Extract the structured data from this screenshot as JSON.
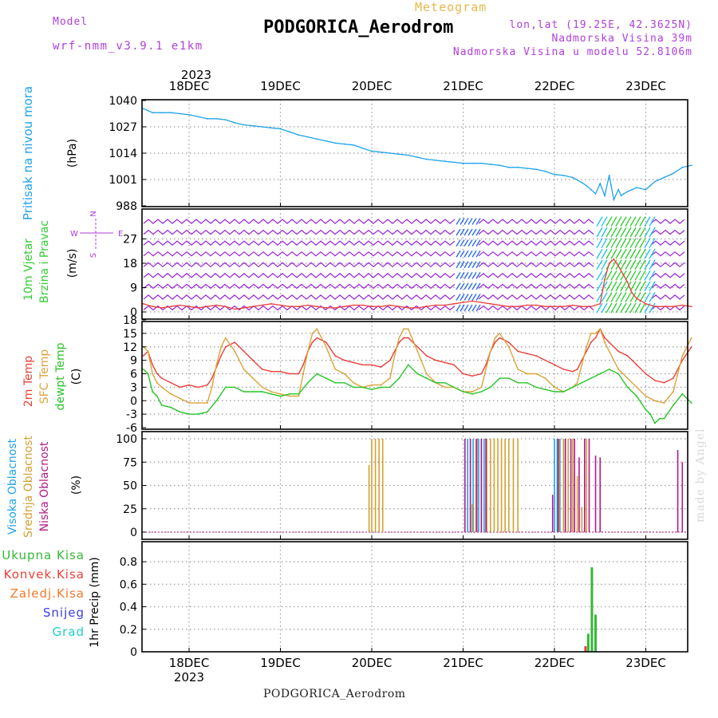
{
  "header": {
    "model_label": "Model",
    "model_name": "wrf-nmm_v3.9.1 e1km",
    "product": "Meteogram",
    "station": "PODGORICA_Aerodrom",
    "lonlat": "lon,lat (19.25E, 42.3625N)",
    "altitude": "Nadmorska Visina 39m",
    "model_altitude": "Nadmorska Visina u modelu 52.8106m",
    "year_top": "2023",
    "year_bottom": "2023",
    "footer": "PODGORICA_Aerodrom",
    "credit": "made by Angel"
  },
  "colors": {
    "pressure": "#1fa3e8",
    "wind_purple": "#9a22d6",
    "wind_blue": "#2a6be6",
    "wind_cyan": "#27c2e8",
    "wind_green": "#33cc33",
    "temp_2m": "#e8413a",
    "temp_sfc": "#dca33a",
    "dewpoint": "#27c427",
    "cloud_high": "#1fa3e8",
    "cloud_mid": "#d4a032",
    "cloud_low": "#b01a8a",
    "precip_total": "#33b833",
    "precip_conv": "#e8413a",
    "precip_frozen": "#f07a2a",
    "precip_snow": "#3c3ce0",
    "precip_hail": "#22cccc",
    "label_purple": "#b040d8"
  },
  "chart_data": [
    {
      "panel": "pressure",
      "type": "line",
      "ylabel": "Pritisak na nivou mora",
      "unit": "(hPa)",
      "yticks": [
        1040,
        1027,
        1014,
        1001,
        988
      ],
      "ylim": [
        988,
        1040
      ],
      "xticks": [
        "18DEC",
        "19DEC",
        "20DEC",
        "21DEC",
        "22DEC",
        "23DEC"
      ],
      "xlim_days": [
        -0.5,
        5.5
      ],
      "series": [
        {
          "x": [
            -0.5,
            -0.45,
            -0.4,
            -0.3,
            -0.2,
            -0.1,
            0,
            0.1,
            0.2,
            0.3,
            0.4,
            0.5,
            0.6,
            0.7,
            0.8,
            0.9,
            1.0,
            1.1,
            1.2,
            1.3,
            1.4,
            1.5,
            1.6,
            1.7,
            1.8,
            1.9,
            2.0,
            2.1,
            2.2,
            2.3,
            2.4,
            2.5,
            2.6,
            2.7,
            2.8,
            2.9,
            3.0,
            3.1,
            3.2,
            3.3,
            3.4,
            3.5,
            3.6,
            3.7,
            3.8,
            3.9,
            4.0,
            4.1,
            4.2,
            4.3,
            4.35,
            4.4,
            4.45,
            4.5,
            4.55,
            4.6,
            4.62,
            4.65,
            4.7,
            4.73,
            4.76,
            4.8,
            4.85,
            4.9,
            5.0,
            5.05,
            5.1,
            5.2,
            5.3,
            5.4,
            5.5
          ],
          "values": [
            1036,
            1035,
            1034,
            1034,
            1034,
            1033.5,
            1033,
            1032,
            1031,
            1031,
            1030.5,
            1029,
            1028,
            1027.5,
            1027,
            1026.5,
            1026,
            1024.5,
            1023,
            1022,
            1021,
            1020,
            1019,
            1018.5,
            1018,
            1016.5,
            1015,
            1014.5,
            1014,
            1013.5,
            1013,
            1012,
            1011,
            1010.5,
            1010,
            1009.5,
            1009,
            1009,
            1009,
            1008.5,
            1008,
            1007,
            1007,
            1006.5,
            1006,
            1005,
            1003.5,
            1003,
            1002,
            999.5,
            998,
            996,
            994,
            999,
            993,
            1003,
            998,
            991,
            996,
            993,
            994,
            995,
            996,
            997,
            996,
            998,
            1000,
            1002,
            1004,
            1007,
            1008
          ]
        }
      ]
    },
    {
      "panel": "wind",
      "type": "line",
      "ylabel": "10m Vjetar Brzina i Pravac",
      "unit": "(m/s)",
      "compass": {
        "north": "N",
        "east": "E",
        "west": "W",
        "south": "S"
      },
      "yticks": [
        0,
        9,
        18,
        27
      ],
      "ylim": [
        0,
        36
      ],
      "series": [
        {
          "name": "speed",
          "x": [
            -0.5,
            -0.4,
            -0.3,
            -0.2,
            -0.1,
            0,
            0.1,
            0.2,
            0.3,
            0.4,
            0.5,
            0.6,
            0.7,
            0.8,
            0.9,
            1.0,
            1.1,
            1.2,
            1.3,
            1.4,
            1.5,
            1.6,
            1.7,
            1.8,
            1.9,
            2.0,
            2.1,
            2.2,
            2.3,
            2.4,
            2.5,
            2.6,
            2.7,
            2.8,
            2.9,
            3.0,
            3.1,
            3.2,
            3.3,
            3.4,
            3.5,
            3.6,
            3.7,
            3.8,
            3.9,
            4.0,
            4.1,
            4.2,
            4.3,
            4.4,
            4.5,
            4.55,
            4.6,
            4.65,
            4.7,
            4.75,
            4.8,
            4.85,
            4.9,
            5.0,
            5.1,
            5.2,
            5.3,
            5.4,
            5.5
          ],
          "values": [
            3,
            2,
            1.5,
            2,
            2.5,
            2,
            1.5,
            2,
            2.5,
            2,
            1,
            1.5,
            2,
            2.5,
            3,
            2.5,
            2,
            2,
            2.5,
            2,
            1.5,
            1.5,
            2,
            2.5,
            2.5,
            2,
            2,
            2.5,
            2,
            1.5,
            1.5,
            2,
            2.5,
            2.5,
            3,
            3.5,
            4,
            3.5,
            3,
            2.5,
            2,
            2,
            2.5,
            2.5,
            2,
            2,
            2,
            2.5,
            2,
            2,
            3,
            12,
            18,
            19.5,
            17,
            14,
            11,
            7,
            5,
            3,
            2,
            2,
            2,
            2.5,
            2
          ]
        }
      ]
    },
    {
      "panel": "temperature",
      "type": "line",
      "ylabel": [
        "2m Temp",
        "SFC Temp",
        "dewpt Temp"
      ],
      "unit": "(C)",
      "yticks": [
        -6,
        -3,
        0,
        3,
        6,
        9,
        12,
        15,
        18
      ],
      "ylim": [
        -6,
        18
      ],
      "series": [
        {
          "name": "2m Temp",
          "x": [
            -0.5,
            -0.45,
            -0.4,
            -0.35,
            -0.3,
            -0.2,
            -0.1,
            0,
            0.1,
            0.2,
            0.25,
            0.3,
            0.35,
            0.4,
            0.5,
            0.6,
            0.7,
            0.8,
            0.9,
            1.0,
            1.1,
            1.2,
            1.25,
            1.3,
            1.35,
            1.4,
            1.5,
            1.6,
            1.7,
            1.8,
            1.9,
            2.0,
            2.1,
            2.2,
            2.25,
            2.3,
            2.35,
            2.4,
            2.5,
            2.6,
            2.7,
            2.8,
            2.9,
            3.0,
            3.1,
            3.2,
            3.25,
            3.3,
            3.35,
            3.4,
            3.5,
            3.6,
            3.7,
            3.8,
            3.9,
            4.0,
            4.1,
            4.2,
            4.25,
            4.3,
            4.35,
            4.4,
            4.45,
            4.5,
            4.55,
            4.6,
            4.7,
            4.8,
            4.9,
            5.0,
            5.1,
            5.2,
            5.3,
            5.4,
            5.5
          ],
          "values": [
            10,
            11,
            8,
            6,
            5,
            4,
            3,
            3.5,
            3,
            3.5,
            5,
            7.5,
            10,
            12,
            13,
            11,
            9,
            7,
            6.5,
            6.5,
            6,
            6,
            8,
            11,
            13,
            14,
            13,
            10,
            9,
            8.5,
            8,
            8,
            7.5,
            9,
            11,
            13,
            14,
            14,
            12,
            10,
            9,
            8.5,
            8,
            6,
            5.5,
            6,
            8,
            11,
            13,
            14,
            13,
            11,
            10.5,
            10,
            9,
            8,
            7,
            6.5,
            7,
            9,
            11,
            13,
            14,
            16,
            14,
            13,
            11,
            10,
            8,
            6,
            4.5,
            4,
            5,
            9,
            12
          ]
        },
        {
          "name": "SFC Temp",
          "x": [
            -0.5,
            -0.45,
            -0.4,
            -0.35,
            -0.3,
            -0.2,
            -0.1,
            0,
            0.1,
            0.2,
            0.25,
            0.3,
            0.35,
            0.4,
            0.5,
            0.6,
            0.7,
            0.8,
            0.9,
            1.0,
            1.1,
            1.2,
            1.25,
            1.3,
            1.35,
            1.4,
            1.5,
            1.6,
            1.7,
            1.8,
            1.9,
            2.0,
            2.1,
            2.2,
            2.25,
            2.3,
            2.35,
            2.4,
            2.5,
            2.6,
            2.7,
            2.8,
            2.9,
            3.0,
            3.1,
            3.2,
            3.25,
            3.3,
            3.35,
            3.4,
            3.5,
            3.6,
            3.7,
            3.8,
            3.9,
            4.0,
            4.1,
            4.2,
            4.25,
            4.3,
            4.35,
            4.4,
            4.45,
            4.5,
            4.55,
            4.6,
            4.7,
            4.8,
            4.9,
            5.0,
            5.1,
            5.2,
            5.3,
            5.4,
            5.5
          ],
          "values": [
            12,
            11,
            6,
            4,
            3,
            1.5,
            0.5,
            -0.5,
            -0.5,
            -0.5,
            3,
            8,
            12,
            14,
            11,
            7,
            5,
            3,
            2,
            1.5,
            1,
            1,
            6,
            11,
            15,
            16,
            12,
            7,
            6,
            4,
            3,
            3.5,
            3.5,
            5,
            10,
            14,
            16,
            16,
            11,
            6,
            4,
            3,
            3,
            2,
            2,
            3,
            7,
            11,
            14,
            15,
            12,
            7,
            6,
            6,
            5,
            3,
            2,
            3,
            4,
            8,
            12,
            15,
            15,
            16,
            13,
            11,
            7,
            5,
            3,
            1,
            0,
            -0.5,
            2,
            10,
            14
          ]
        },
        {
          "name": "dewpt Temp",
          "x": [
            -0.5,
            -0.45,
            -0.4,
            -0.35,
            -0.3,
            -0.2,
            -0.1,
            0,
            0.1,
            0.2,
            0.3,
            0.4,
            0.5,
            0.6,
            0.7,
            0.8,
            0.9,
            1.0,
            1.1,
            1.2,
            1.3,
            1.4,
            1.5,
            1.6,
            1.7,
            1.8,
            1.9,
            2.0,
            2.1,
            2.2,
            2.3,
            2.4,
            2.5,
            2.6,
            2.7,
            2.8,
            2.9,
            3.0,
            3.1,
            3.2,
            3.3,
            3.4,
            3.5,
            3.6,
            3.7,
            3.8,
            3.9,
            4.0,
            4.1,
            4.2,
            4.3,
            4.4,
            4.5,
            4.6,
            4.7,
            4.8,
            4.9,
            5.0,
            5.05,
            5.1,
            5.15,
            5.2,
            5.3,
            5.4,
            5.5
          ],
          "values": [
            7,
            6,
            2,
            1,
            -1,
            -1.5,
            -2.5,
            -3,
            -3,
            -2.5,
            0,
            3,
            3,
            2,
            2,
            2,
            1.5,
            1,
            1.5,
            1.5,
            4,
            6,
            5,
            4,
            4,
            3,
            3,
            2.5,
            3,
            3,
            5,
            8,
            6,
            5,
            4,
            4,
            3,
            2,
            1.5,
            2,
            3,
            5,
            5,
            4,
            4,
            3,
            2.5,
            2,
            2,
            3,
            4,
            5,
            6,
            7,
            6,
            3,
            1,
            -2,
            -3,
            -5,
            -4,
            -4,
            -1,
            1.5,
            -0.5
          ]
        }
      ]
    },
    {
      "panel": "clouds",
      "type": "bar",
      "ylabel": [
        "Visoka Oblacnost",
        "Srednja Oblacnost",
        "Niska Oblacnost"
      ],
      "unit": "(%)",
      "yticks": [
        0,
        25,
        50,
        75,
        100
      ],
      "ylim": [
        0,
        100
      ],
      "series": [
        {
          "name": "Visoka Oblacnost",
          "x": [
            3.05,
            3.08,
            3.11,
            3.14,
            3.17,
            3.2,
            3.23,
            4.0,
            4.03,
            4.06,
            4.1
          ],
          "values": [
            100,
            100,
            100,
            100,
            100,
            100,
            100,
            100,
            100,
            100,
            100
          ]
        },
        {
          "name": "Srednja Oblacnost",
          "x": [
            1.97,
            2.0,
            2.04,
            2.08,
            2.12,
            3.1,
            3.14,
            3.2,
            3.26,
            3.3,
            3.34,
            3.38,
            3.42,
            3.46,
            3.5,
            3.55,
            3.6,
            4.05,
            4.1,
            4.15,
            4.2,
            4.25,
            4.3,
            4.35
          ],
          "values": [
            72,
            100,
            100,
            100,
            100,
            30,
            100,
            100,
            100,
            100,
            100,
            100,
            100,
            100,
            100,
            100,
            100,
            100,
            100,
            100,
            100,
            60,
            27,
            100
          ]
        },
        {
          "name": "Niska Oblacnost",
          "x": [
            3.02,
            3.08,
            3.15,
            3.2,
            3.25,
            3.98,
            4.04,
            4.12,
            4.18,
            4.22,
            4.27,
            4.33,
            4.38,
            4.45,
            4.5,
            5.35,
            5.4
          ],
          "values": [
            100,
            100,
            100,
            100,
            100,
            40,
            100,
            100,
            100,
            100,
            80,
            100,
            100,
            82,
            80,
            88,
            75
          ]
        }
      ]
    },
    {
      "panel": "precip",
      "type": "bar",
      "ylabel": "1hr Precip (mm)",
      "legend": [
        "Ukupna Kisa",
        "Konvek.Kisa",
        "Zaledj.Kisa",
        "Snijeg",
        "Grad"
      ],
      "yticks": [
        0,
        0.2,
        0.4,
        0.6,
        0.8
      ],
      "ylim": [
        0,
        0.9
      ],
      "series": [
        {
          "name": "Ukupna Kisa",
          "x": [
            4.37,
            4.41,
            4.45
          ],
          "values": [
            0.16,
            0.75,
            0.33
          ]
        },
        {
          "name": "Konvek.Kisa",
          "x": [
            4.34
          ],
          "values": [
            0.05
          ]
        }
      ]
    }
  ]
}
